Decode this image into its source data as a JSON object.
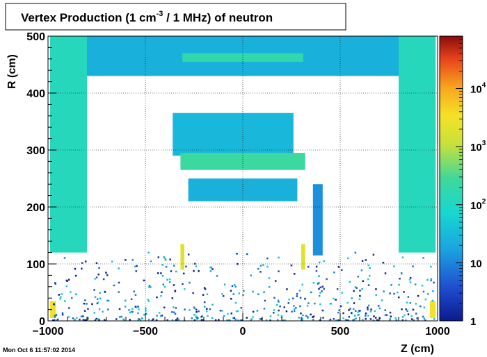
{
  "title_main": "Vertex Production (1 cm",
  "title_sup": "-3",
  "title_rest": " / 1 MHz) of   neutron",
  "timestamp": "Mon Oct  6 11:57:02 2014",
  "chart_data": {
    "type": "heatmap",
    "title": "Vertex Production (1 cm^-3 / 1 MHz) of   neutron",
    "xlabel": "Z (cm)",
    "ylabel": "R (cm)",
    "xlim": [
      -1000,
      1000
    ],
    "ylim": [
      0,
      500
    ],
    "x_ticks": [
      "−1000",
      "−500",
      "0",
      "500",
      "1000"
    ],
    "x_tick_values": [
      -1000,
      -500,
      0,
      500,
      1000
    ],
    "y_ticks": [
      "0",
      "100",
      "200",
      "300",
      "400",
      "500"
    ],
    "y_tick_values": [
      0,
      100,
      200,
      300,
      400,
      500
    ],
    "colorbar": {
      "scale": "log",
      "range": [
        1,
        80000
      ],
      "ticks": [
        {
          "value": 1,
          "base": "1",
          "exp": ""
        },
        {
          "value": 10,
          "base": "10",
          "exp": ""
        },
        {
          "value": 100,
          "base": "10",
          "exp": "2"
        },
        {
          "value": 1000,
          "base": "10",
          "exp": "3"
        },
        {
          "value": 10000,
          "base": "10",
          "exp": "4"
        }
      ]
    },
    "grid": true,
    "regions": [
      {
        "name": "endcap-left",
        "z": [
          -990,
          -800
        ],
        "r": [
          120,
          500
        ],
        "level": 120
      },
      {
        "name": "endcap-right",
        "z": [
          800,
          990
        ],
        "r": [
          120,
          500
        ],
        "level": 120
      },
      {
        "name": "top-band",
        "z": [
          -800,
          800
        ],
        "r": [
          430,
          500
        ],
        "level": 25
      },
      {
        "name": "top-strip",
        "z": [
          -310,
          310
        ],
        "r": [
          455,
          470
        ],
        "level": 180
      },
      {
        "name": "central-block",
        "z": [
          -360,
          260
        ],
        "r": [
          290,
          365
        ],
        "level": 30
      },
      {
        "name": "calorimeter-cells",
        "z": [
          -320,
          320
        ],
        "r": [
          265,
          295
        ],
        "level": 250
      },
      {
        "name": "inner-wedge",
        "z": [
          -280,
          280
        ],
        "r": [
          210,
          250
        ],
        "level": 25
      },
      {
        "name": "right-plate",
        "z": [
          360,
          410
        ],
        "r": [
          115,
          240
        ],
        "level": 12
      },
      {
        "name": "forward-hot-left",
        "z": [
          -990,
          -960
        ],
        "r": [
          5,
          35
        ],
        "level": 3000
      },
      {
        "name": "forward-hot-right",
        "z": [
          960,
          990
        ],
        "r": [
          5,
          35
        ],
        "level": 3000
      },
      {
        "name": "bottom-hot-left",
        "z": [
          -320,
          -300
        ],
        "r": [
          90,
          135
        ],
        "level": 2000
      },
      {
        "name": "bottom-hot-right",
        "z": [
          300,
          320
        ],
        "r": [
          90,
          135
        ],
        "level": 2000
      }
    ]
  }
}
